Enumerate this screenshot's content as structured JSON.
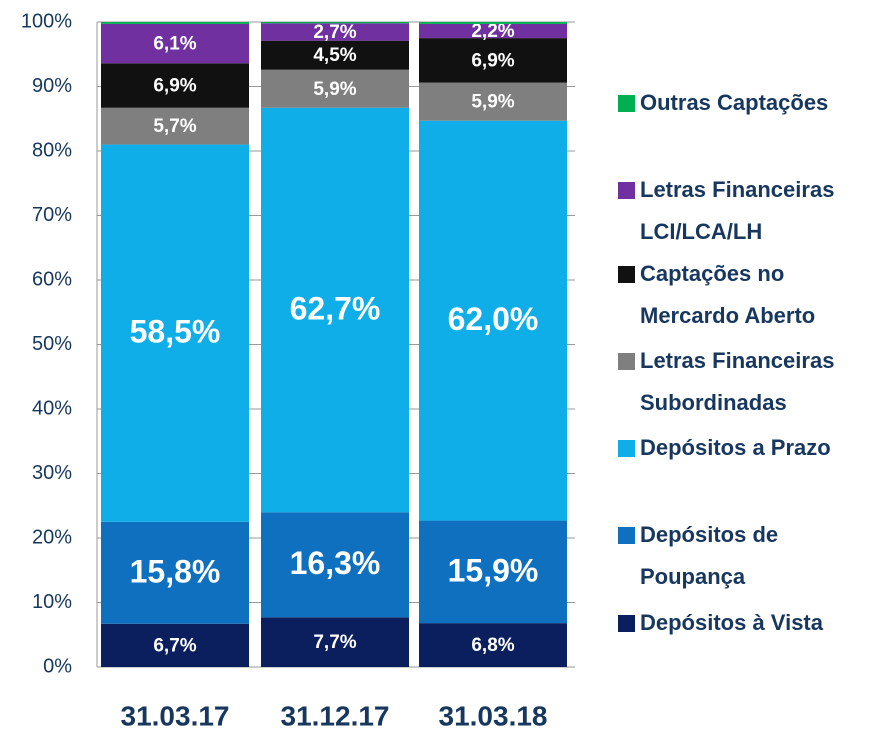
{
  "chart_data": {
    "type": "bar",
    "stacked": true,
    "categories": [
      "31.03.17",
      "31.12.17",
      "31.03.18"
    ],
    "ylim": [
      0,
      100
    ],
    "yticks": [
      {
        "value": 0,
        "label": "0%"
      },
      {
        "value": 10,
        "label": "10%"
      },
      {
        "value": 20,
        "label": "20%"
      },
      {
        "value": 30,
        "label": "30%"
      },
      {
        "value": 40,
        "label": "40%"
      },
      {
        "value": 50,
        "label": "50%"
      },
      {
        "value": 60,
        "label": "60%"
      },
      {
        "value": 70,
        "label": "70%"
      },
      {
        "value": 80,
        "label": "80%"
      },
      {
        "value": 90,
        "label": "90%"
      },
      {
        "value": 100,
        "label": "100%"
      }
    ],
    "grid": true,
    "series": [
      {
        "name": "Depósitos à Vista",
        "color": "#0b1f5e",
        "values": [
          6.7,
          7.7,
          6.8
        ],
        "value_labels": [
          "6,7%",
          "7,7%",
          "6,8%"
        ]
      },
      {
        "name": "Depósitos de Poupança",
        "color": "#0f70c0",
        "values": [
          15.8,
          16.3,
          15.9
        ],
        "value_labels": [
          "15,8%",
          "16,3%",
          "15,9%"
        ]
      },
      {
        "name": "Depósitos a Prazo",
        "color": "#10aee9",
        "values": [
          58.5,
          62.7,
          62.0
        ],
        "value_labels": [
          "58,5%",
          "62,7%",
          "62,0%"
        ]
      },
      {
        "name": "Letras Financeiras Subordinadas",
        "color": "#7f7f7f",
        "values": [
          5.7,
          5.9,
          5.9
        ],
        "value_labels": [
          "5,7%",
          "5,9%",
          "5,9%"
        ]
      },
      {
        "name": "Captações no Mercardo Aberto",
        "color": "#111111",
        "values": [
          6.9,
          4.5,
          6.9
        ],
        "value_labels": [
          "6,9%",
          "4,5%",
          "6,9%"
        ]
      },
      {
        "name": "Letras Financeiras LCI/LCA/LH",
        "color": "#7030a0",
        "values": [
          6.1,
          2.7,
          2.2
        ],
        "value_labels": [
          "6,1%",
          "2,7%",
          "2,2%"
        ]
      },
      {
        "name": "Outras Captações",
        "color": "#00b050",
        "values": [
          0.3,
          0.2,
          0.3
        ]
      }
    ]
  }
}
